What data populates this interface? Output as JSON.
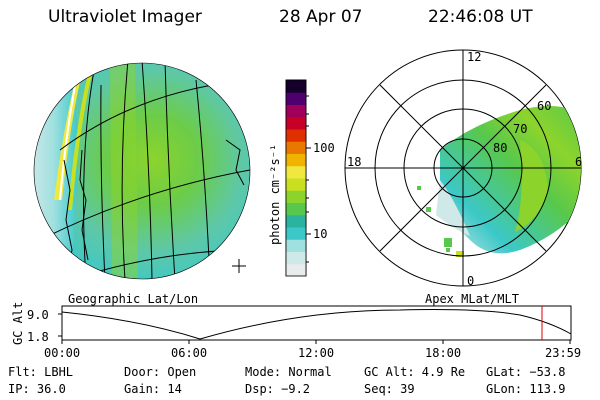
{
  "header": {
    "title": "Ultraviolet Imager",
    "date": "28 Apr 07",
    "time": "22:46:08 UT"
  },
  "left_panel": {
    "label": "Geographic Lat/Lon"
  },
  "right_panel": {
    "label": "Apex MLat/MLT",
    "mlt_labels": {
      "top": "12",
      "left": "18",
      "right": "6",
      "bottom": "0"
    },
    "lat_labels": [
      "80",
      "70",
      "60"
    ]
  },
  "colorbar": {
    "unit_label": "photon cm⁻²s⁻¹",
    "tick_labels": [
      "100",
      "10"
    ],
    "colors": [
      "#e8ecec",
      "#cfe8e8",
      "#9fe0e0",
      "#3cc8c8",
      "#2ab4a0",
      "#58c84c",
      "#8cd42c",
      "#c8e020",
      "#f0e840",
      "#f0b400",
      "#e87800",
      "#e03000",
      "#c80028",
      "#a0005a",
      "#50006e",
      "#14002a"
    ]
  },
  "timeline": {
    "y_axis_label": "GC Alt",
    "y_ticks": [
      "9.0",
      "1.8"
    ],
    "x_ticks": [
      "00:00",
      "06:00",
      "12:00",
      "18:00",
      "23:59"
    ],
    "marker_time": "22:46"
  },
  "status": {
    "flt": "Flt: LBHL",
    "door": "Door: Open",
    "mode": "Mode: Normal",
    "gc_alt": "GC Alt: 4.9 Re",
    "glat": "GLat: −53.8",
    "ip": "IP: 36.0",
    "gain": "Gain: 14",
    "dsp": "Dsp:    −9.2",
    "seq": "Seq: 39",
    "glon": "GLon: 113.9"
  }
}
